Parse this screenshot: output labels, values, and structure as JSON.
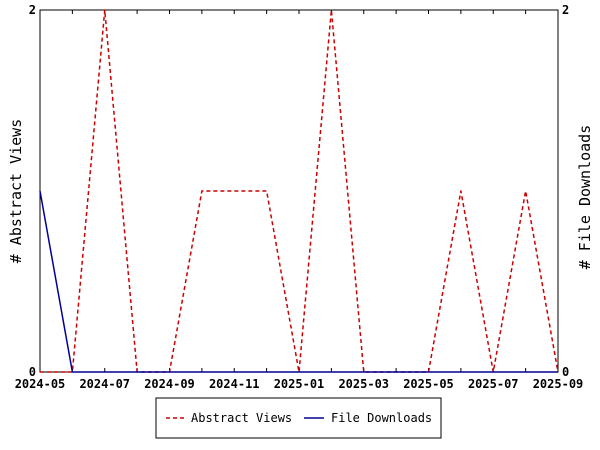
{
  "chart_data": {
    "type": "line",
    "x": [
      "2024-05",
      "2024-06",
      "2024-07",
      "2024-08",
      "2024-09",
      "2024-10",
      "2024-11",
      "2024-12",
      "2025-01",
      "2025-02",
      "2025-03",
      "2025-04",
      "2025-05",
      "2025-06",
      "2025-07",
      "2025-08",
      "2025-09"
    ],
    "x_tick_labels": [
      "2024-05",
      "2024-07",
      "2024-09",
      "2024-11",
      "2025-01",
      "2025-03",
      "2025-05",
      "2025-07",
      "2025-09"
    ],
    "series": [
      {
        "name": "Abstract Views",
        "axis": "left",
        "color": "#cc0000",
        "style": "dashed",
        "values": [
          0,
          0,
          2,
          0,
          0,
          1,
          1,
          1,
          0,
          2,
          0,
          0,
          0,
          1,
          0,
          1,
          0
        ]
      },
      {
        "name": "File Downloads",
        "axis": "right",
        "color": "#000099",
        "style": "solid",
        "values": [
          1,
          0,
          0,
          0,
          0,
          0,
          0,
          0,
          0,
          0,
          0,
          0,
          0,
          0,
          0,
          0,
          0
        ]
      }
    ],
    "ylabel": "# Abstract Views",
    "y2label": "# File Downloads",
    "ylim": [
      0,
      2
    ],
    "y2lim": [
      0,
      2
    ],
    "y_tick_labels": [
      "0",
      "2"
    ],
    "y2_tick_labels": [
      "0",
      "2"
    ],
    "grid": false,
    "legend_position": "bottom-center"
  }
}
